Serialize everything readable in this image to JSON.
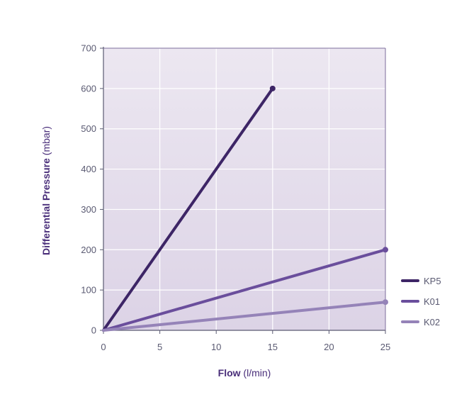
{
  "chart_data": {
    "type": "line",
    "title": "",
    "xlabel": {
      "bold": "Flow",
      "rest": " (l/min)"
    },
    "ylabel": {
      "bold": "Differential Pressure",
      "rest": " (mbar)"
    },
    "xlim": [
      0,
      25
    ],
    "ylim": [
      0,
      700
    ],
    "xticks": [
      0,
      5,
      10,
      15,
      20,
      25
    ],
    "yticks": [
      0,
      100,
      200,
      300,
      400,
      500,
      600,
      700
    ],
    "xtick_labels": [
      "0",
      "5",
      "10",
      "15",
      "20",
      "25"
    ],
    "ytick_labels": [
      "0",
      "100",
      "200",
      "300",
      "400",
      "500",
      "600",
      "700"
    ],
    "grid": true,
    "legend_position": "bottom-right outside",
    "plot_background": "#e6e0ed",
    "series": [
      {
        "name": "KP5",
        "color": "#3d2566",
        "x": [
          0,
          15
        ],
        "y": [
          0,
          600
        ]
      },
      {
        "name": "K01",
        "color": "#6a4e9c",
        "x": [
          0,
          25
        ],
        "y": [
          0,
          200
        ]
      },
      {
        "name": "K02",
        "color": "#9583b8",
        "x": [
          0,
          25
        ],
        "y": [
          0,
          70
        ]
      }
    ]
  }
}
